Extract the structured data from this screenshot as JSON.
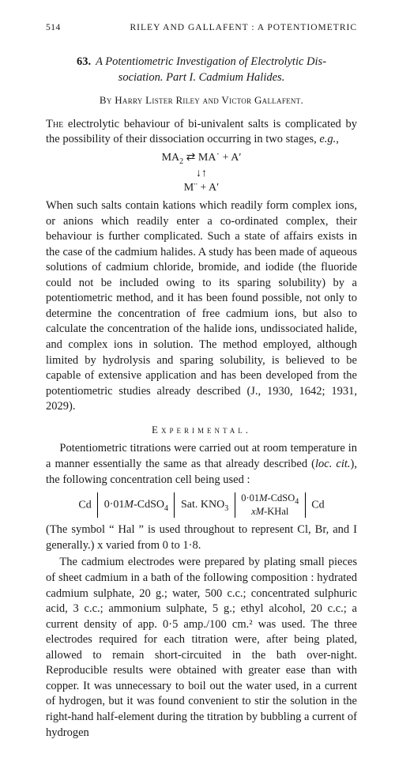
{
  "page_number": "514",
  "running_head": "RILEY AND GALLAFENT : A POTENTIOMETRIC",
  "article_number": "63.",
  "title_line1": "A Potentiometric Investigation of Electrolytic Dis-",
  "title_line2": "sociation.   Part I.   Cadmium Halides.",
  "byline": "By Harry Lister Riley and Victor Gallafent.",
  "intro_lead": "The",
  "intro_rest": " electrolytic behaviour of bi-univalent salts is complicated by the possibility of their dissociation occurring in two stages, ",
  "intro_eg": "e.g.",
  "eq_line1_left": "MA",
  "eq_line1_rest": " ⇄ MA˙ + A′",
  "eq_line2": "↓↑",
  "eq_line3": "M¨ + A′",
  "p2": "When such salts contain kations which readily form complex ions, or anions which readily enter a co-ordinated complex, their behaviour is further complicated. Such a state of affairs exists in the case of the cadmium halides. A study has been made of aqueous solutions of cadmium chloride, bromide, and iodide (the fluoride could not be included owing to its sparing solubility) by a potentiometric method, and it has been found possible, not only to determine the concentration of free cadmium ions, but also to calculate the concentration of the halide ions, undissociated halide, and complex ions in solution. The method employed, although limited by hydrolysis and sparing solubility, is believed to be capable of extensive application and has been developed from the potentiometric studies already described (J., 1930, 1642; 1931, 2029).",
  "section": "Experimental.",
  "p3a": "Potentiometric titrations were carried out at room temperature in a manner essentially the same as that already described (",
  "p3_loc": "loc. cit.",
  "p3b": "), the following concentration cell being used :",
  "cell_left": "Cd",
  "cell_a_pre": "0·01",
  "cell_a_m": "M",
  "cell_a_rest": "-CdSO",
  "cell_b": "Sat. KNO",
  "cell_c_top_pre": "0·01",
  "cell_c_top_m": "M",
  "cell_c_top_rest": "-CdSO",
  "cell_c_bot_x": "x",
  "cell_c_bot_m": "M",
  "cell_c_bot_rest": "-KHal",
  "cell_right": "Cd",
  "p4": "(The symbol “ Hal ” is used throughout to represent Cl, Br, and I generally.)   x varied from 0 to 1·8.",
  "p5": "The cadmium electrodes were prepared by plating small pieces of sheet cadmium in a bath of the following composition : hydrated cadmium sulphate, 20 g.; water, 500 c.c.; concentrated sulphuric acid, 3 c.c.; ammonium sulphate, 5 g.; ethyl alcohol, 20 c.c.; a current density of app. 0·5 amp./100 cm.² was used. The three electrodes required for each titration were, after being plated, allowed to remain short-circuited in the bath over-night. Reproducible results were obtained with greater ease than with copper. It was unnecessary to boil out the water used, in a current of hydrogen, but it was found convenient to stir the solution in the right-hand half-element during the titration by bubbling a current of hydrogen"
}
